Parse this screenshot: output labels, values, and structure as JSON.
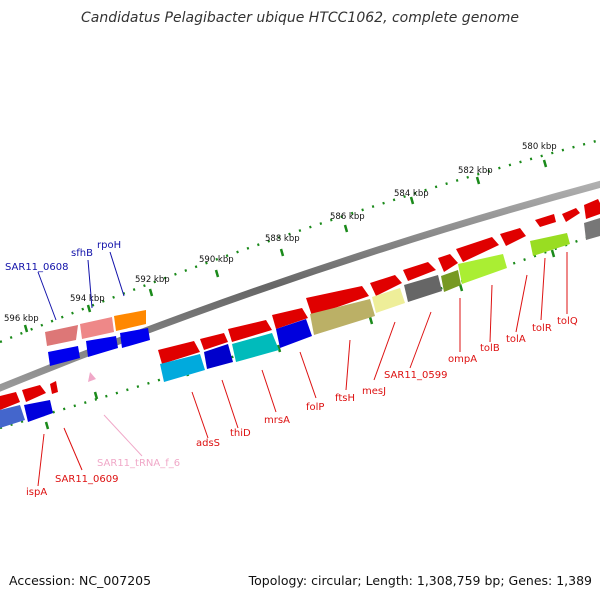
{
  "title": "Candidatus Pelagibacter ubique HTCC1062, complete genome",
  "footer": {
    "accession": "Accession: NC_007205",
    "summary": "Topology: circular; Length: 1,308,759 bp; Genes: 1,389"
  },
  "ticks": [
    {
      "id": "t580",
      "label": "580 kbp"
    },
    {
      "id": "t582",
      "label": "582 kbp"
    },
    {
      "id": "t584",
      "label": "584 kbp"
    },
    {
      "id": "t586",
      "label": "586 kbp"
    },
    {
      "id": "t588",
      "label": "588 kbp"
    },
    {
      "id": "t590",
      "label": "590 kbp"
    },
    {
      "id": "t592",
      "label": "592 kbp"
    },
    {
      "id": "t594",
      "label": "594 kbp"
    },
    {
      "id": "t596",
      "label": "596 kbp"
    }
  ],
  "genes": [
    {
      "id": "tolQ",
      "label": "tolQ",
      "color": "#dd1111"
    },
    {
      "id": "tolR",
      "label": "tolR",
      "color": "#dd1111"
    },
    {
      "id": "tolA",
      "label": "tolA",
      "color": "#dd1111"
    },
    {
      "id": "tolB",
      "label": "tolB",
      "color": "#dd1111"
    },
    {
      "id": "ompA",
      "label": "ompA",
      "color": "#dd1111"
    },
    {
      "id": "sar0599",
      "label": "SAR11_0599",
      "color": "#dd1111"
    },
    {
      "id": "mesJ",
      "label": "mesJ",
      "color": "#dd1111"
    },
    {
      "id": "ftsH",
      "label": "ftsH",
      "color": "#dd1111"
    },
    {
      "id": "folP",
      "label": "folP",
      "color": "#dd1111"
    },
    {
      "id": "mrsA",
      "label": "mrsA",
      "color": "#dd1111"
    },
    {
      "id": "thiD",
      "label": "thiD",
      "color": "#dd1111"
    },
    {
      "id": "adsS",
      "label": "adsS",
      "color": "#dd1111"
    },
    {
      "id": "sar0609",
      "label": "SAR11_0609",
      "color": "#dd1111"
    },
    {
      "id": "ispA",
      "label": "ispA",
      "color": "#dd1111"
    },
    {
      "id": "trna",
      "label": "SAR11_tRNA_f_6",
      "color": "#f0a8c8"
    },
    {
      "id": "sar0608",
      "label": "SAR11_0608",
      "color": "#1111aa"
    },
    {
      "id": "sfhB",
      "label": "sfhB",
      "color": "#1111aa"
    },
    {
      "id": "rpoH",
      "label": "rpoH",
      "color": "#1111aa"
    }
  ],
  "colors": {
    "forward_cds": "#e00000",
    "reverse_cds": "#0000dd",
    "backbone": "#777777",
    "tick": "#1a8a1a",
    "label_forward": "#dd1111",
    "label_reverse": "#1111aa",
    "label_trna": "#f0a8c8"
  }
}
